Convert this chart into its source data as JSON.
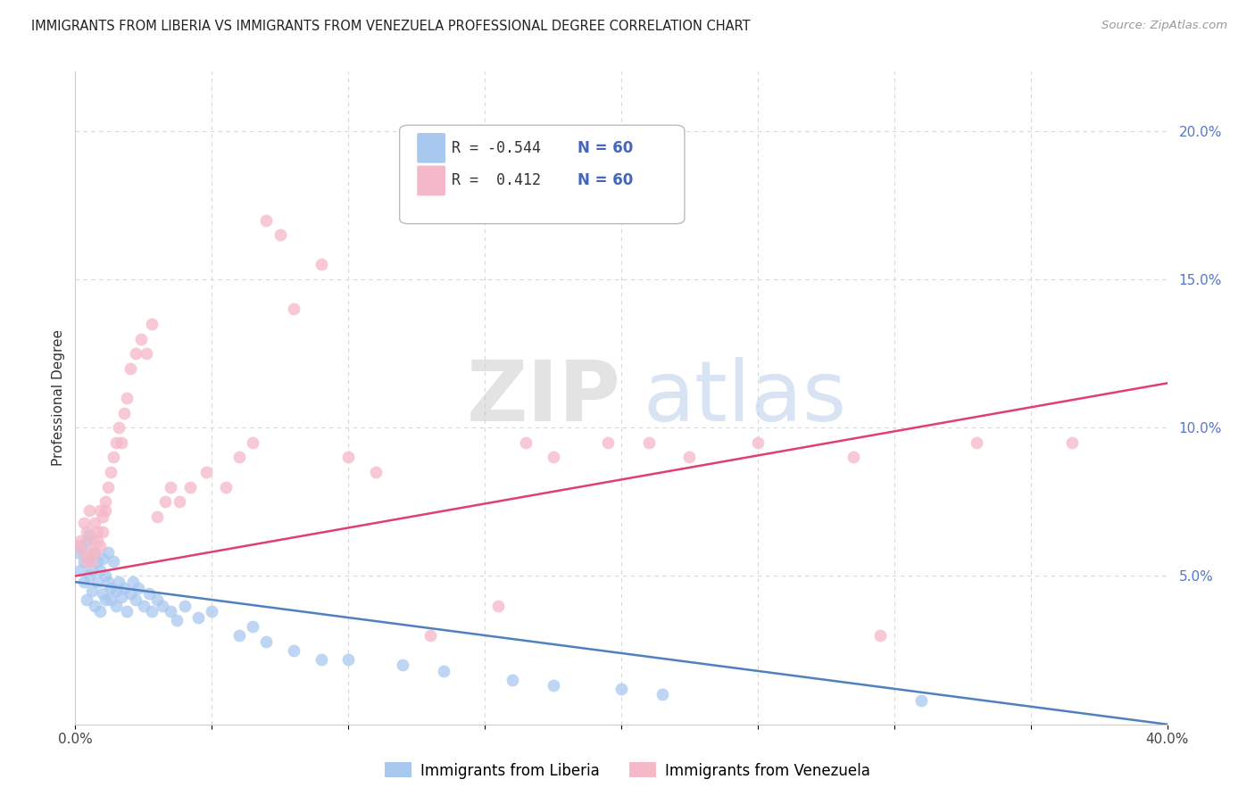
{
  "title": "IMMIGRANTS FROM LIBERIA VS IMMIGRANTS FROM VENEZUELA PROFESSIONAL DEGREE CORRELATION CHART",
  "source": "Source: ZipAtlas.com",
  "ylabel": "Professional Degree",
  "xlim": [
    0.0,
    0.4
  ],
  "ylim": [
    0.0,
    0.22
  ],
  "color_liberia": "#a8c8f0",
  "color_venezuela": "#f5b8c8",
  "line_color_liberia": "#5080c0",
  "line_color_venezuela": "#e04070",
  "background_color": "#ffffff",
  "grid_color": "#d8d8d8",
  "liberia_x": [
    0.001,
    0.002,
    0.002,
    0.003,
    0.003,
    0.004,
    0.004,
    0.005,
    0.005,
    0.005,
    0.006,
    0.006,
    0.007,
    0.007,
    0.008,
    0.008,
    0.009,
    0.009,
    0.01,
    0.01,
    0.011,
    0.011,
    0.012,
    0.012,
    0.013,
    0.013,
    0.014,
    0.015,
    0.015,
    0.016,
    0.017,
    0.018,
    0.019,
    0.02,
    0.021,
    0.022,
    0.023,
    0.025,
    0.027,
    0.028,
    0.03,
    0.032,
    0.035,
    0.037,
    0.04,
    0.045,
    0.05,
    0.06,
    0.065,
    0.07,
    0.08,
    0.09,
    0.1,
    0.12,
    0.135,
    0.16,
    0.175,
    0.2,
    0.215,
    0.31
  ],
  "liberia_y": [
    0.058,
    0.06,
    0.052,
    0.055,
    0.048,
    0.062,
    0.042,
    0.056,
    0.05,
    0.064,
    0.052,
    0.045,
    0.058,
    0.04,
    0.055,
    0.048,
    0.052,
    0.038,
    0.056,
    0.044,
    0.05,
    0.042,
    0.048,
    0.058,
    0.046,
    0.042,
    0.055,
    0.045,
    0.04,
    0.048,
    0.043,
    0.046,
    0.038,
    0.044,
    0.048,
    0.042,
    0.046,
    0.04,
    0.044,
    0.038,
    0.042,
    0.04,
    0.038,
    0.035,
    0.04,
    0.036,
    0.038,
    0.03,
    0.033,
    0.028,
    0.025,
    0.022,
    0.022,
    0.02,
    0.018,
    0.015,
    0.013,
    0.012,
    0.01,
    0.008
  ],
  "venezuela_x": [
    0.001,
    0.002,
    0.003,
    0.003,
    0.004,
    0.004,
    0.005,
    0.005,
    0.006,
    0.006,
    0.007,
    0.007,
    0.008,
    0.008,
    0.009,
    0.009,
    0.01,
    0.01,
    0.011,
    0.011,
    0.012,
    0.013,
    0.014,
    0.015,
    0.016,
    0.017,
    0.018,
    0.019,
    0.02,
    0.022,
    0.024,
    0.026,
    0.028,
    0.03,
    0.033,
    0.035,
    0.038,
    0.042,
    0.048,
    0.055,
    0.06,
    0.065,
    0.07,
    0.075,
    0.08,
    0.09,
    0.1,
    0.11,
    0.13,
    0.155,
    0.165,
    0.175,
    0.195,
    0.21,
    0.225,
    0.25,
    0.285,
    0.295,
    0.33,
    0.365
  ],
  "venezuela_y": [
    0.06,
    0.062,
    0.058,
    0.068,
    0.055,
    0.065,
    0.058,
    0.072,
    0.062,
    0.055,
    0.068,
    0.058,
    0.065,
    0.062,
    0.06,
    0.072,
    0.07,
    0.065,
    0.075,
    0.072,
    0.08,
    0.085,
    0.09,
    0.095,
    0.1,
    0.095,
    0.105,
    0.11,
    0.12,
    0.125,
    0.13,
    0.125,
    0.135,
    0.07,
    0.075,
    0.08,
    0.075,
    0.08,
    0.085,
    0.08,
    0.09,
    0.095,
    0.17,
    0.165,
    0.14,
    0.155,
    0.09,
    0.085,
    0.03,
    0.04,
    0.095,
    0.09,
    0.095,
    0.095,
    0.09,
    0.095,
    0.09,
    0.03,
    0.095,
    0.095
  ]
}
